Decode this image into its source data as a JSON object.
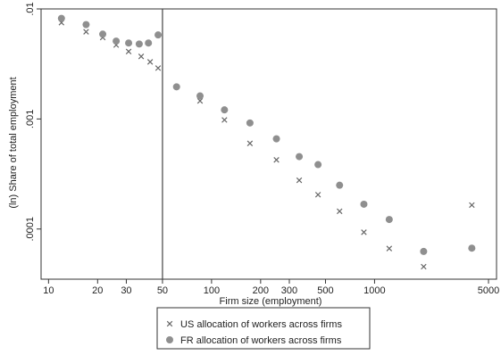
{
  "chart_data": {
    "type": "scatter",
    "title": "",
    "xlabel": "Firm size (employment)",
    "ylabel": "(ln) Share of total employment",
    "x_scale": "log",
    "y_scale": "log",
    "xlim": [
      9,
      5600
    ],
    "ylim": [
      3.5e-05,
      0.01
    ],
    "x_ticks": [
      10,
      20,
      30,
      50,
      100,
      200,
      300,
      500,
      1000,
      5000
    ],
    "x_tick_labels": [
      "10",
      "20",
      "30",
      "50",
      "100",
      "200",
      "300",
      "500",
      "1000",
      "5000"
    ],
    "y_ticks": [
      0.01,
      0.001,
      0.0001
    ],
    "y_tick_labels": [
      ".01",
      ".001",
      ".0001"
    ],
    "vertical_reference_line_x": 50,
    "grid": false,
    "legend_position": "bottom",
    "series": [
      {
        "name": "US allocation of workers across firms",
        "marker": "x",
        "color": "#666666",
        "points": [
          [
            12,
            0.0075
          ],
          [
            17,
            0.0062
          ],
          [
            21.5,
            0.0055
          ],
          [
            26,
            0.0047
          ],
          [
            31,
            0.0041
          ],
          [
            37,
            0.0037
          ],
          [
            42,
            0.0033
          ],
          [
            47,
            0.0029
          ],
          [
            85,
            0.00146
          ],
          [
            120,
            0.00098
          ],
          [
            172,
            0.0006
          ],
          [
            250,
            0.000425
          ],
          [
            345,
            0.000277
          ],
          [
            450,
            0.000205
          ],
          [
            610,
            0.000145
          ],
          [
            860,
            9.35e-05
          ],
          [
            1230,
            6.65e-05
          ],
          [
            2000,
            4.55e-05
          ],
          [
            3950,
            0.000165
          ]
        ]
      },
      {
        "name": "FR allocation of workers across firms",
        "marker": "circle",
        "color": "#8f8f8f",
        "points": [
          [
            12,
            0.0082
          ],
          [
            17,
            0.0072
          ],
          [
            21.5,
            0.0059
          ],
          [
            26,
            0.0051
          ],
          [
            31,
            0.0049
          ],
          [
            36,
            0.0048
          ],
          [
            41,
            0.0049
          ],
          [
            47,
            0.0058
          ],
          [
            61,
            0.00196
          ],
          [
            85,
            0.00162
          ],
          [
            120,
            0.00121
          ],
          [
            172,
            0.00092
          ],
          [
            250,
            0.00066
          ],
          [
            345,
            0.000455
          ],
          [
            450,
            0.000385
          ],
          [
            610,
            0.00025
          ],
          [
            860,
            0.000168
          ],
          [
            1230,
            0.000122
          ],
          [
            2000,
            6.25e-05
          ],
          [
            3950,
            6.7e-05
          ]
        ]
      }
    ]
  }
}
